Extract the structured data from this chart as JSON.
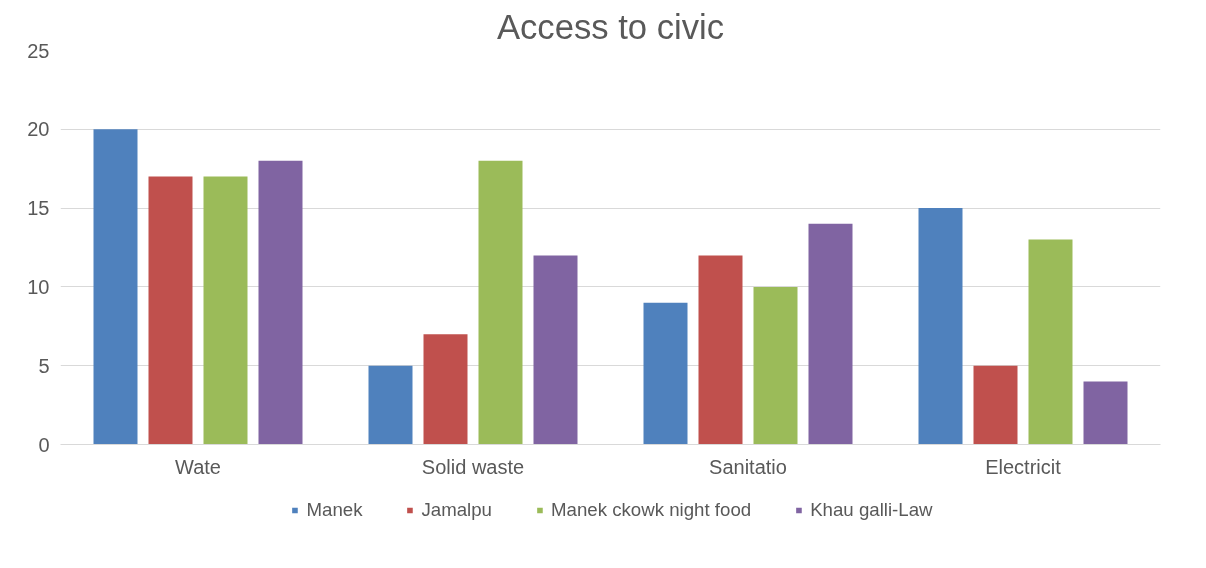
{
  "chart_data": {
    "type": "bar",
    "title": "Access to civic",
    "categories": [
      "Wate",
      "Solid waste",
      "Sanitatio",
      "Electricit"
    ],
    "series": [
      {
        "name": "Manek",
        "color": "#4f81bd",
        "values": [
          20,
          5,
          9,
          15
        ]
      },
      {
        "name": "Jamalpu",
        "color": "#c0504d",
        "values": [
          17,
          7,
          12,
          5
        ]
      },
      {
        "name": "Manek ckowk night food",
        "color": "#9bbb59",
        "values": [
          17,
          18,
          10,
          13
        ]
      },
      {
        "name": "Khau galli-Law",
        "color": "#8064a2",
        "values": [
          18,
          12,
          14,
          4
        ]
      }
    ],
    "ylim": [
      0,
      25
    ],
    "yticks": [
      0,
      5,
      10,
      15,
      20,
      25
    ],
    "grid": "y",
    "legend": "bottom"
  }
}
